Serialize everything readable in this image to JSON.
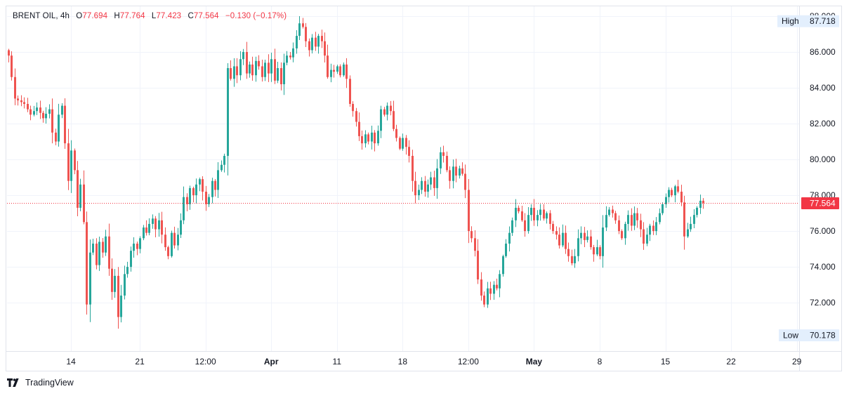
{
  "legend": {
    "symbol": "BRENT OIL",
    "interval": "4h",
    "open_label": "O",
    "open": "77.694",
    "high_label": "H",
    "high": "77.764",
    "low_label": "L",
    "low": "77.423",
    "close_label": "C",
    "close": "77.564",
    "change": "−0.130 (−0.17%)"
  },
  "branding": {
    "name": "TradingView"
  },
  "colors": {
    "up": "#26a69a",
    "down": "#ef5350",
    "price_line": "#f23645",
    "grid": "#f0f3fa",
    "text": "#131722"
  },
  "chart_data": {
    "type": "candlestick",
    "y_axis": {
      "ylim": [
        69.3,
        88.55
      ],
      "ticks": [
        72,
        74,
        76,
        78,
        80,
        82,
        84,
        86,
        88
      ],
      "tick_labels": [
        "72.000",
        "74.000",
        "76.000",
        "78.000",
        "80.000",
        "82.000",
        "84.000",
        "86.000",
        "88.000"
      ]
    },
    "x_axis": {
      "tick_labels": [
        "14",
        "21",
        "12:00",
        "Apr",
        "11",
        "18",
        "12:00",
        "May",
        "8",
        "15",
        "22",
        "29"
      ],
      "tick_index": [
        20,
        42,
        63,
        84,
        105,
        126,
        147,
        168,
        189,
        210,
        231,
        252
      ],
      "bold_labels": [
        "Apr",
        "May"
      ]
    },
    "current_price": {
      "value": 77.564,
      "label": "77.564"
    },
    "high_marker": {
      "text": "High",
      "value": 87.718,
      "label": "87.718"
    },
    "low_marker": {
      "text": "Low",
      "value": 70.178,
      "label": "70.178"
    },
    "anchors": [
      [
        0,
        85.8
      ],
      [
        2,
        83.4
      ],
      [
        5,
        83.1
      ],
      [
        7,
        82.5
      ],
      [
        9,
        82.9
      ],
      [
        11,
        82.3
      ],
      [
        13,
        82.8
      ],
      [
        14,
        81.5
      ],
      [
        15,
        81.0
      ],
      [
        16,
        82.5
      ],
      [
        17,
        83.0
      ],
      [
        18,
        80.9
      ],
      [
        19,
        78.8
      ],
      [
        20,
        80.5
      ],
      [
        21,
        79.4
      ],
      [
        22,
        77.3
      ],
      [
        23,
        78.6
      ],
      [
        24,
        76.5
      ],
      [
        25,
        71.9
      ],
      [
        26,
        74.8
      ],
      [
        27,
        75.3
      ],
      [
        28,
        74.1
      ],
      [
        29,
        75.4
      ],
      [
        30,
        74.8
      ],
      [
        31,
        75.7
      ],
      [
        32,
        73.9
      ],
      [
        33,
        72.6
      ],
      [
        34,
        73.5
      ],
      [
        35,
        71.2
      ],
      [
        36,
        72.4
      ],
      [
        37,
        73.6
      ],
      [
        38,
        74.0
      ],
      [
        39,
        74.9
      ],
      [
        40,
        75.3
      ],
      [
        41,
        75.0
      ],
      [
        42,
        75.6
      ],
      [
        43,
        76.2
      ],
      [
        44,
        75.9
      ],
      [
        45,
        76.4
      ],
      [
        46,
        76.7
      ],
      [
        47,
        76.1
      ],
      [
        48,
        76.6
      ],
      [
        49,
        75.8
      ],
      [
        50,
        75.1
      ],
      [
        51,
        74.6
      ],
      [
        52,
        75.9
      ],
      [
        53,
        75.2
      ],
      [
        54,
        75.8
      ],
      [
        55,
        76.6
      ],
      [
        56,
        77.9
      ],
      [
        57,
        77.5
      ],
      [
        58,
        78.4
      ],
      [
        59,
        78.0
      ],
      [
        60,
        78.6
      ],
      [
        61,
        78.9
      ],
      [
        62,
        78.2
      ],
      [
        63,
        77.5
      ],
      [
        64,
        77.9
      ],
      [
        65,
        78.8
      ],
      [
        66,
        78.3
      ],
      [
        67,
        79.4
      ],
      [
        68,
        79.7
      ],
      [
        69,
        80.2
      ],
      [
        70,
        85.1
      ],
      [
        71,
        84.5
      ],
      [
        72,
        85.2
      ],
      [
        73,
        84.7
      ],
      [
        74,
        85.6
      ],
      [
        75,
        86.0
      ],
      [
        76,
        84.8
      ],
      [
        77,
        85.3
      ],
      [
        78,
        84.7
      ],
      [
        79,
        85.5
      ],
      [
        80,
        85.2
      ],
      [
        81,
        84.6
      ],
      [
        82,
        85.4
      ],
      [
        83,
        84.8
      ],
      [
        84,
        85.6
      ],
      [
        85,
        84.4
      ],
      [
        86,
        85.1
      ],
      [
        87,
        84.2
      ],
      [
        88,
        85.4
      ],
      [
        89,
        85.8
      ],
      [
        90,
        85.7
      ],
      [
        91,
        86.2
      ],
      [
        92,
        86.9
      ],
      [
        93,
        87.6
      ],
      [
        94,
        87.4
      ],
      [
        95,
        86.6
      ],
      [
        96,
        86.1
      ],
      [
        97,
        86.8
      ],
      [
        98,
        86.3
      ],
      [
        99,
        86.9
      ],
      [
        100,
        86.6
      ],
      [
        101,
        85.8
      ],
      [
        102,
        84.6
      ],
      [
        103,
        85.0
      ],
      [
        104,
        84.9
      ],
      [
        105,
        85.2
      ],
      [
        106,
        84.7
      ],
      [
        107,
        85.3
      ],
      [
        108,
        84.5
      ],
      [
        109,
        83.1
      ],
      [
        110,
        82.7
      ],
      [
        111,
        82.1
      ],
      [
        112,
        81.3
      ],
      [
        113,
        80.9
      ],
      [
        114,
        81.4
      ],
      [
        115,
        81.0
      ],
      [
        116,
        81.5
      ],
      [
        117,
        80.9
      ],
      [
        118,
        81.6
      ],
      [
        119,
        82.8
      ],
      [
        120,
        82.5
      ],
      [
        121,
        83.0
      ],
      [
        122,
        82.7
      ],
      [
        123,
        81.7
      ],
      [
        124,
        81.2
      ],
      [
        125,
        80.6
      ],
      [
        126,
        81.2
      ],
      [
        127,
        80.7
      ],
      [
        128,
        80.2
      ],
      [
        129,
        78.8
      ],
      [
        130,
        78.0
      ],
      [
        131,
        78.3
      ],
      [
        132,
        78.8
      ],
      [
        133,
        78.2
      ],
      [
        134,
        78.6
      ],
      [
        135,
        79.0
      ],
      [
        136,
        78.4
      ],
      [
        137,
        79.5
      ],
      [
        138,
        80.4
      ],
      [
        139,
        80.2
      ],
      [
        140,
        79.4
      ],
      [
        141,
        78.8
      ],
      [
        142,
        79.6
      ],
      [
        143,
        79.1
      ],
      [
        144,
        79.5
      ],
      [
        145,
        79.2
      ],
      [
        146,
        78.3
      ],
      [
        147,
        76.0
      ],
      [
        148,
        75.6
      ],
      [
        149,
        74.9
      ],
      [
        150,
        73.3
      ],
      [
        151,
        72.4
      ],
      [
        152,
        71.9
      ],
      [
        153,
        72.8
      ],
      [
        154,
        72.5
      ],
      [
        155,
        73.0
      ],
      [
        156,
        72.8
      ],
      [
        157,
        73.6
      ],
      [
        158,
        74.6
      ],
      [
        159,
        75.3
      ],
      [
        160,
        75.9
      ],
      [
        161,
        76.6
      ],
      [
        162,
        77.3
      ],
      [
        163,
        77.1
      ],
      [
        164,
        76.6
      ],
      [
        165,
        76.0
      ],
      [
        166,
        76.9
      ],
      [
        167,
        77.3
      ],
      [
        168,
        76.6
      ],
      [
        169,
        76.9
      ],
      [
        170,
        77.2
      ],
      [
        171,
        76.7
      ],
      [
        172,
        77.0
      ],
      [
        173,
        76.4
      ],
      [
        174,
        76.0
      ],
      [
        175,
        75.8
      ],
      [
        176,
        75.2
      ],
      [
        177,
        75.9
      ],
      [
        178,
        75.0
      ],
      [
        179,
        74.6
      ],
      [
        180,
        74.2
      ],
      [
        181,
        74.6
      ],
      [
        182,
        75.6
      ],
      [
        183,
        75.9
      ],
      [
        184,
        75.5
      ],
      [
        185,
        75.7
      ],
      [
        186,
        75.1
      ],
      [
        187,
        74.7
      ],
      [
        188,
        75.1
      ],
      [
        189,
        74.6
      ],
      [
        190,
        76.2
      ],
      [
        191,
        76.9
      ],
      [
        192,
        77.2
      ],
      [
        193,
        77.0
      ],
      [
        194,
        76.6
      ],
      [
        195,
        76.0
      ],
      [
        196,
        75.6
      ],
      [
        197,
        76.4
      ],
      [
        198,
        76.9
      ],
      [
        199,
        76.3
      ],
      [
        200,
        77.0
      ],
      [
        201,
        76.6
      ],
      [
        202,
        76.1
      ],
      [
        203,
        75.3
      ],
      [
        204,
        75.8
      ],
      [
        205,
        76.3
      ],
      [
        206,
        76.0
      ],
      [
        207,
        76.5
      ],
      [
        208,
        77.0
      ],
      [
        209,
        77.5
      ],
      [
        210,
        77.9
      ],
      [
        211,
        78.3
      ],
      [
        212,
        78.0
      ],
      [
        213,
        78.5
      ],
      [
        214,
        78.2
      ],
      [
        215,
        77.6
      ],
      [
        216,
        75.7
      ],
      [
        217,
        76.1
      ],
      [
        218,
        76.4
      ],
      [
        219,
        76.9
      ],
      [
        220,
        77.3
      ],
      [
        221,
        77.694
      ],
      [
        222,
        77.564
      ]
    ]
  }
}
